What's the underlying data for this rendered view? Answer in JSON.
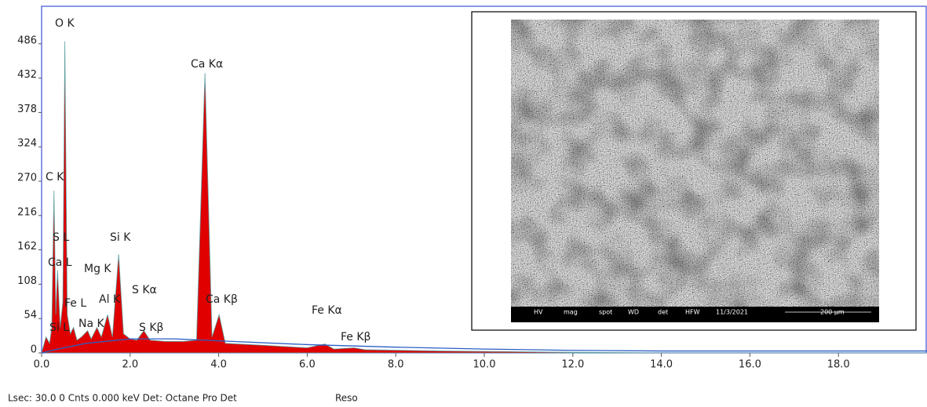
{
  "chart_data": {
    "type": "area",
    "xlim": [
      0,
      20
    ],
    "ylim": [
      0,
      545
    ],
    "xticks": [
      {
        "value": 0,
        "label": "0.0"
      },
      {
        "value": 2,
        "label": "2.0"
      },
      {
        "value": 4,
        "label": "4.0"
      },
      {
        "value": 6,
        "label": "6.0"
      },
      {
        "value": 8,
        "label": "8.0"
      },
      {
        "value": 10,
        "label": "10.0"
      },
      {
        "value": 12,
        "label": "12.0"
      },
      {
        "value": 14,
        "label": "14.0"
      },
      {
        "value": 16,
        "label": "16.0"
      },
      {
        "value": 18,
        "label": "18.0"
      }
    ],
    "yticks": [
      0,
      54,
      108,
      162,
      216,
      270,
      324,
      378,
      432,
      486
    ],
    "series": [
      {
        "color": "#e00000",
        "kind": "area",
        "x": [
          0,
          0.1,
          0.18,
          0.23,
          0.28,
          0.32,
          0.36,
          0.42,
          0.48,
          0.525,
          0.58,
          0.65,
          0.72,
          0.8,
          0.9,
          1.04,
          1.12,
          1.25,
          1.35,
          1.49,
          1.6,
          1.74,
          1.85,
          2.0,
          2.15,
          2.31,
          2.45,
          2.8,
          3.2,
          3.5,
          3.69,
          3.85,
          4.01,
          4.15,
          5.0,
          6.0,
          6.4,
          6.6,
          7.06,
          7.3,
          9,
          12,
          14,
          20
        ],
        "values": [
          0,
          25,
          15,
          40,
          255,
          60,
          130,
          40,
          80,
          490,
          60,
          30,
          40,
          20,
          25,
          35,
          22,
          40,
          25,
          60,
          25,
          155,
          30,
          22,
          20,
          35,
          20,
          18,
          18,
          20,
          440,
          25,
          60,
          15,
          12,
          8,
          14,
          6,
          8,
          5,
          3,
          1,
          0,
          0
        ]
      },
      {
        "color": "#2a5fc4",
        "kind": "line",
        "x": [
          0,
          0.3,
          1,
          2,
          3,
          4,
          6,
          8,
          10,
          12,
          14,
          16,
          18,
          20
        ],
        "values": [
          0,
          5,
          15,
          22,
          22,
          19,
          13,
          9,
          6,
          4,
          3,
          3,
          3,
          3
        ]
      }
    ],
    "annotations": [
      "O K",
      "Ca Kα",
      "C K",
      "S L",
      "Ca L",
      "Si K",
      "Mg K",
      "Fe L",
      "S Kα",
      "Al K",
      "Ca Kβ",
      "Fe Kα",
      "Na K",
      "S Kβ",
      "Fe Kβ",
      "Si L"
    ]
  },
  "sem_image": {
    "info_labels": [
      "HV",
      "mag",
      "spot",
      "WD",
      "det",
      "HFW",
      "11/3/2021",
      "200 µm"
    ]
  },
  "status_bar": {
    "left": "Lsec: 30.0 0 Cnts 0.000 keV Det: Octane Pro Det",
    "right": "Reso"
  }
}
